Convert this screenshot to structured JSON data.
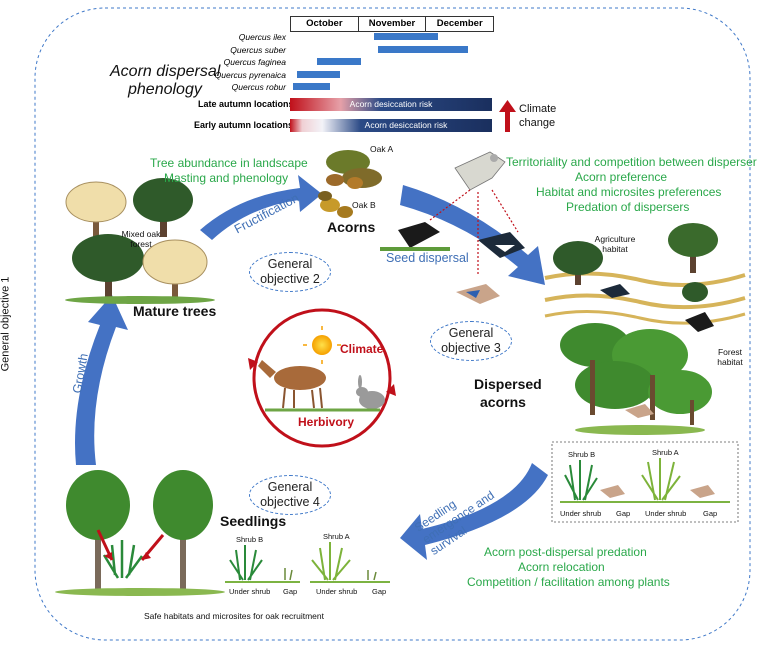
{
  "side_label": "General objective 1",
  "phenology": {
    "title_line1": "Acorn dispersal",
    "title_line2": "phenology",
    "months": [
      "October",
      "November",
      "December"
    ],
    "species": [
      {
        "name": "Quercus ilex",
        "start_month": 1.25,
        "end_month": 2.2
      },
      {
        "name": "Quercus suber",
        "start_month": 1.3,
        "end_month": 2.65
      },
      {
        "name": "Quercus faginea",
        "start_month": 0.4,
        "end_month": 1.05
      },
      {
        "name": "Quercus pyrenaica",
        "start_month": 0.1,
        "end_month": 0.75
      },
      {
        "name": "Quercus robur",
        "start_month": 0.05,
        "end_month": 0.6
      }
    ],
    "late_label": "Late autumn locations",
    "early_label": "Early autumn locations",
    "risk_text": "Acorn desiccation risk",
    "climate_change": "Climate change"
  },
  "text": {
    "tree_abundance": "Tree abundance in landscape",
    "masting": "Masting and phenology",
    "fructification": "Fructification",
    "acorns": "Acorns",
    "oak_a": "Oak A",
    "oak_b": "Oak B",
    "mixed_forest": "Mixed oak forest",
    "mature_trees": "Mature trees",
    "territoriality": "Territoriality and competition between dispersers",
    "acorn_preference": "Acorn preference",
    "habitat_pref": "Habitat and microsites preferences",
    "predation_dispersers": "Predation of dispersers",
    "seed_dispersal": "Seed dispersal",
    "agri_habitat": "Agriculture habitat",
    "forest_habitat": "Forest habitat",
    "dispersed_acorns_1": "Dispersed",
    "dispersed_acorns_2": "acorns",
    "growth": "Growth",
    "climate": "Climate",
    "herbivory": "Herbivory",
    "seedling_emergence": "Seedling emergence and survival",
    "seedlings": "Seedlings",
    "post_dispersal": "Acorn post-dispersal predation",
    "relocation": "Acorn relocation",
    "competition": "Competition / facilitation among plants",
    "safe_habitats": "Safe habitats and microsites for oak recruitment",
    "shrub_b": "Shrub B",
    "shrub_a": "Shrub A",
    "under_shrub": "Under shrub",
    "gap": "Gap"
  },
  "objectives": {
    "obj2_line1": "General",
    "obj2_line2": "objective 2",
    "obj3_line1": "General",
    "obj3_line2": "objective 3",
    "obj4_line1": "General",
    "obj4_line2": "objective 4"
  },
  "colors": {
    "arrow_blue": "#4472c4",
    "label_green": "#2aa84a",
    "bar_blue": "#3a78c8",
    "risk_red": "#c0101a",
    "risk_navy": "#1a2f5e",
    "cycle_red": "#c0101a"
  }
}
